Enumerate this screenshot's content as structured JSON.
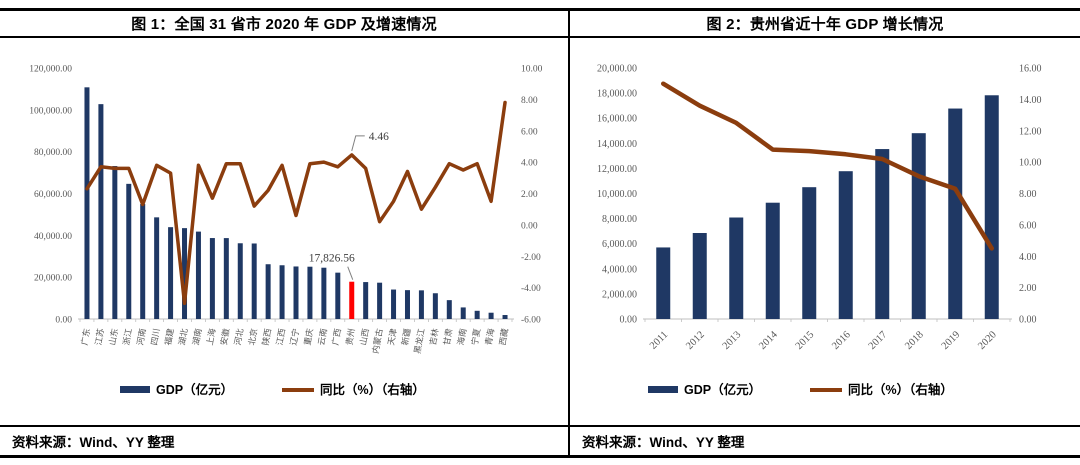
{
  "colors": {
    "bar": "#1F3864",
    "line": "#8B3D0E",
    "highlight": "#FF0000",
    "axis_text": "#595959",
    "axis_line": "#BFBFBF",
    "annotation_text": "#404040",
    "rule": "#000000"
  },
  "panels": [
    {
      "title": "图 1：全国 31 省市 2020 年 GDP 及增速情况",
      "source": "资料来源：Wind、YY 整理",
      "legend": [
        {
          "swatch": "bar",
          "label": "GDP（亿元）"
        },
        {
          "swatch": "line",
          "label": "同比（%）（右轴）"
        }
      ]
    },
    {
      "title": "图 2：贵州省近十年 GDP 增长情况",
      "source": "资料来源：Wind、YY 整理",
      "legend": [
        {
          "swatch": "bar",
          "label": "GDP（亿元）"
        },
        {
          "swatch": "line",
          "label": "同比（%）（右轴）"
        }
      ]
    }
  ],
  "chart_data": [
    {
      "type": "bar+line",
      "title": "全国 31 省市 2020 年 GDP 及增速情况",
      "categories": [
        "广东",
        "江苏",
        "山东",
        "浙江",
        "河南",
        "四川",
        "福建",
        "湖北",
        "湖南",
        "上海",
        "安徽",
        "河北",
        "北京",
        "陕西",
        "江西",
        "辽宁",
        "重庆",
        "云南",
        "广西",
        "贵州",
        "山西",
        "内蒙古",
        "天津",
        "新疆",
        "黑龙江",
        "吉林",
        "甘肃",
        "海南",
        "宁夏",
        "青海",
        "西藏"
      ],
      "series": [
        {
          "name": "GDP（亿元）",
          "type": "bar",
          "axis": "left",
          "values": [
            110760.9,
            102719.0,
            73129.0,
            64613.3,
            54997.1,
            48598.8,
            43903.9,
            43443.5,
            41781.5,
            38700.6,
            38680.6,
            36206.9,
            36102.6,
            26181.9,
            25691.5,
            25115.0,
            25002.8,
            24521.9,
            22156.7,
            17826.56,
            17651.9,
            17360.2,
            14083.7,
            13797.6,
            13698.5,
            12311.3,
            9016.7,
            5532.4,
            3920.5,
            3005.9,
            1902.7
          ]
        },
        {
          "name": "同比（%）（右轴）",
          "type": "line",
          "axis": "right",
          "values": [
            2.3,
            3.7,
            3.6,
            3.6,
            1.3,
            3.8,
            3.3,
            -5.0,
            3.8,
            1.7,
            3.9,
            3.9,
            1.2,
            2.2,
            3.8,
            0.6,
            3.9,
            4.0,
            3.7,
            4.46,
            3.6,
            0.2,
            1.5,
            3.4,
            1.0,
            2.4,
            3.9,
            3.5,
            3.9,
            1.5,
            7.8
          ]
        }
      ],
      "left_axis": {
        "min": 0,
        "max": 120000,
        "tick_labels": [
          "120,000.00",
          "100,000.00",
          "80,000.00",
          "60,000.00",
          "40,000.00",
          "20,000.00",
          "0.00"
        ]
      },
      "right_axis": {
        "min": -6,
        "max": 10,
        "tick_labels": [
          "10.00",
          "8.00",
          "6.00",
          "4.00",
          "2.00",
          "0.00",
          "-2.00",
          "-4.00",
          "-6.00"
        ]
      },
      "highlight_index": 19,
      "annotations": [
        {
          "text": "4.46",
          "attach": "line",
          "index": 19
        },
        {
          "text": "17,826.56",
          "attach": "bar",
          "index": 19
        }
      ],
      "grid": false,
      "legend_position": "bottom"
    },
    {
      "type": "bar+line",
      "title": "贵州省近十年 GDP 增长情况",
      "categories": [
        "2011",
        "2012",
        "2013",
        "2014",
        "2015",
        "2016",
        "2017",
        "2018",
        "2019",
        "2020"
      ],
      "series": [
        {
          "name": "GDP（亿元）",
          "type": "bar",
          "axis": "left",
          "values": [
            5701.84,
            6852.2,
            8086.86,
            9266.39,
            10502.56,
            11776.73,
            13540.83,
            14806.45,
            16769.34,
            17826.56
          ]
        },
        {
          "name": "同比（%）（右轴）",
          "type": "line",
          "axis": "right",
          "values": [
            15.0,
            13.6,
            12.5,
            10.8,
            10.7,
            10.5,
            10.2,
            9.1,
            8.3,
            4.5
          ]
        }
      ],
      "left_axis": {
        "min": 0,
        "max": 20000,
        "tick_labels": [
          "20,000.00",
          "18,000.00",
          "16,000.00",
          "14,000.00",
          "12,000.00",
          "10,000.00",
          "8,000.00",
          "6,000.00",
          "4,000.00",
          "2,000.00",
          "0.00"
        ]
      },
      "right_axis": {
        "min": 0,
        "max": 16,
        "tick_labels": [
          "16.00",
          "14.00",
          "12.00",
          "10.00",
          "8.00",
          "6.00",
          "4.00",
          "2.00",
          "0.00"
        ]
      },
      "highlight_index": null,
      "annotations": [],
      "grid": false,
      "legend_position": "bottom"
    }
  ]
}
